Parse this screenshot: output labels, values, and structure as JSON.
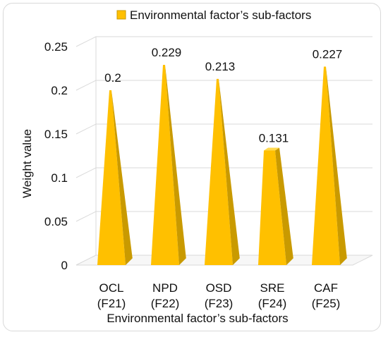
{
  "chart_data": {
    "type": "bar",
    "bar_shape": "3d-pyramid",
    "categories": [
      "OCL (F21)",
      "NPD (F22)",
      "OSD (F23)",
      "SRE (F24)",
      "CAF (F25)"
    ],
    "category_lines": [
      [
        "OCL",
        "(F21)"
      ],
      [
        "NPD",
        "(F22)"
      ],
      [
        "OSD",
        "(F23)"
      ],
      [
        "SRE",
        "(F24)"
      ],
      [
        "CAF",
        "(F25)"
      ]
    ],
    "series": [
      {
        "name": "Environmental factor’s sub-factors",
        "values": [
          0.2,
          0.229,
          0.213,
          0.131,
          0.227
        ],
        "labels": [
          "0.2",
          "0.229",
          "0.213",
          "0.131",
          "0.227"
        ]
      }
    ],
    "xlabel": "Environmental factor’s sub-factors",
    "ylabel": "Weight value",
    "ylim": [
      0,
      0.25
    ],
    "yticks": [
      "0",
      "0.05",
      "0.1",
      "0.15",
      "0.2",
      "0.25"
    ],
    "grid": true,
    "legend_position": "top",
    "colors": {
      "bar_front": "#ffc000",
      "bar_side": "#c99a00",
      "bar_top": "#ffd94d",
      "grid": "#d9d9d9",
      "text": "#111111"
    }
  }
}
